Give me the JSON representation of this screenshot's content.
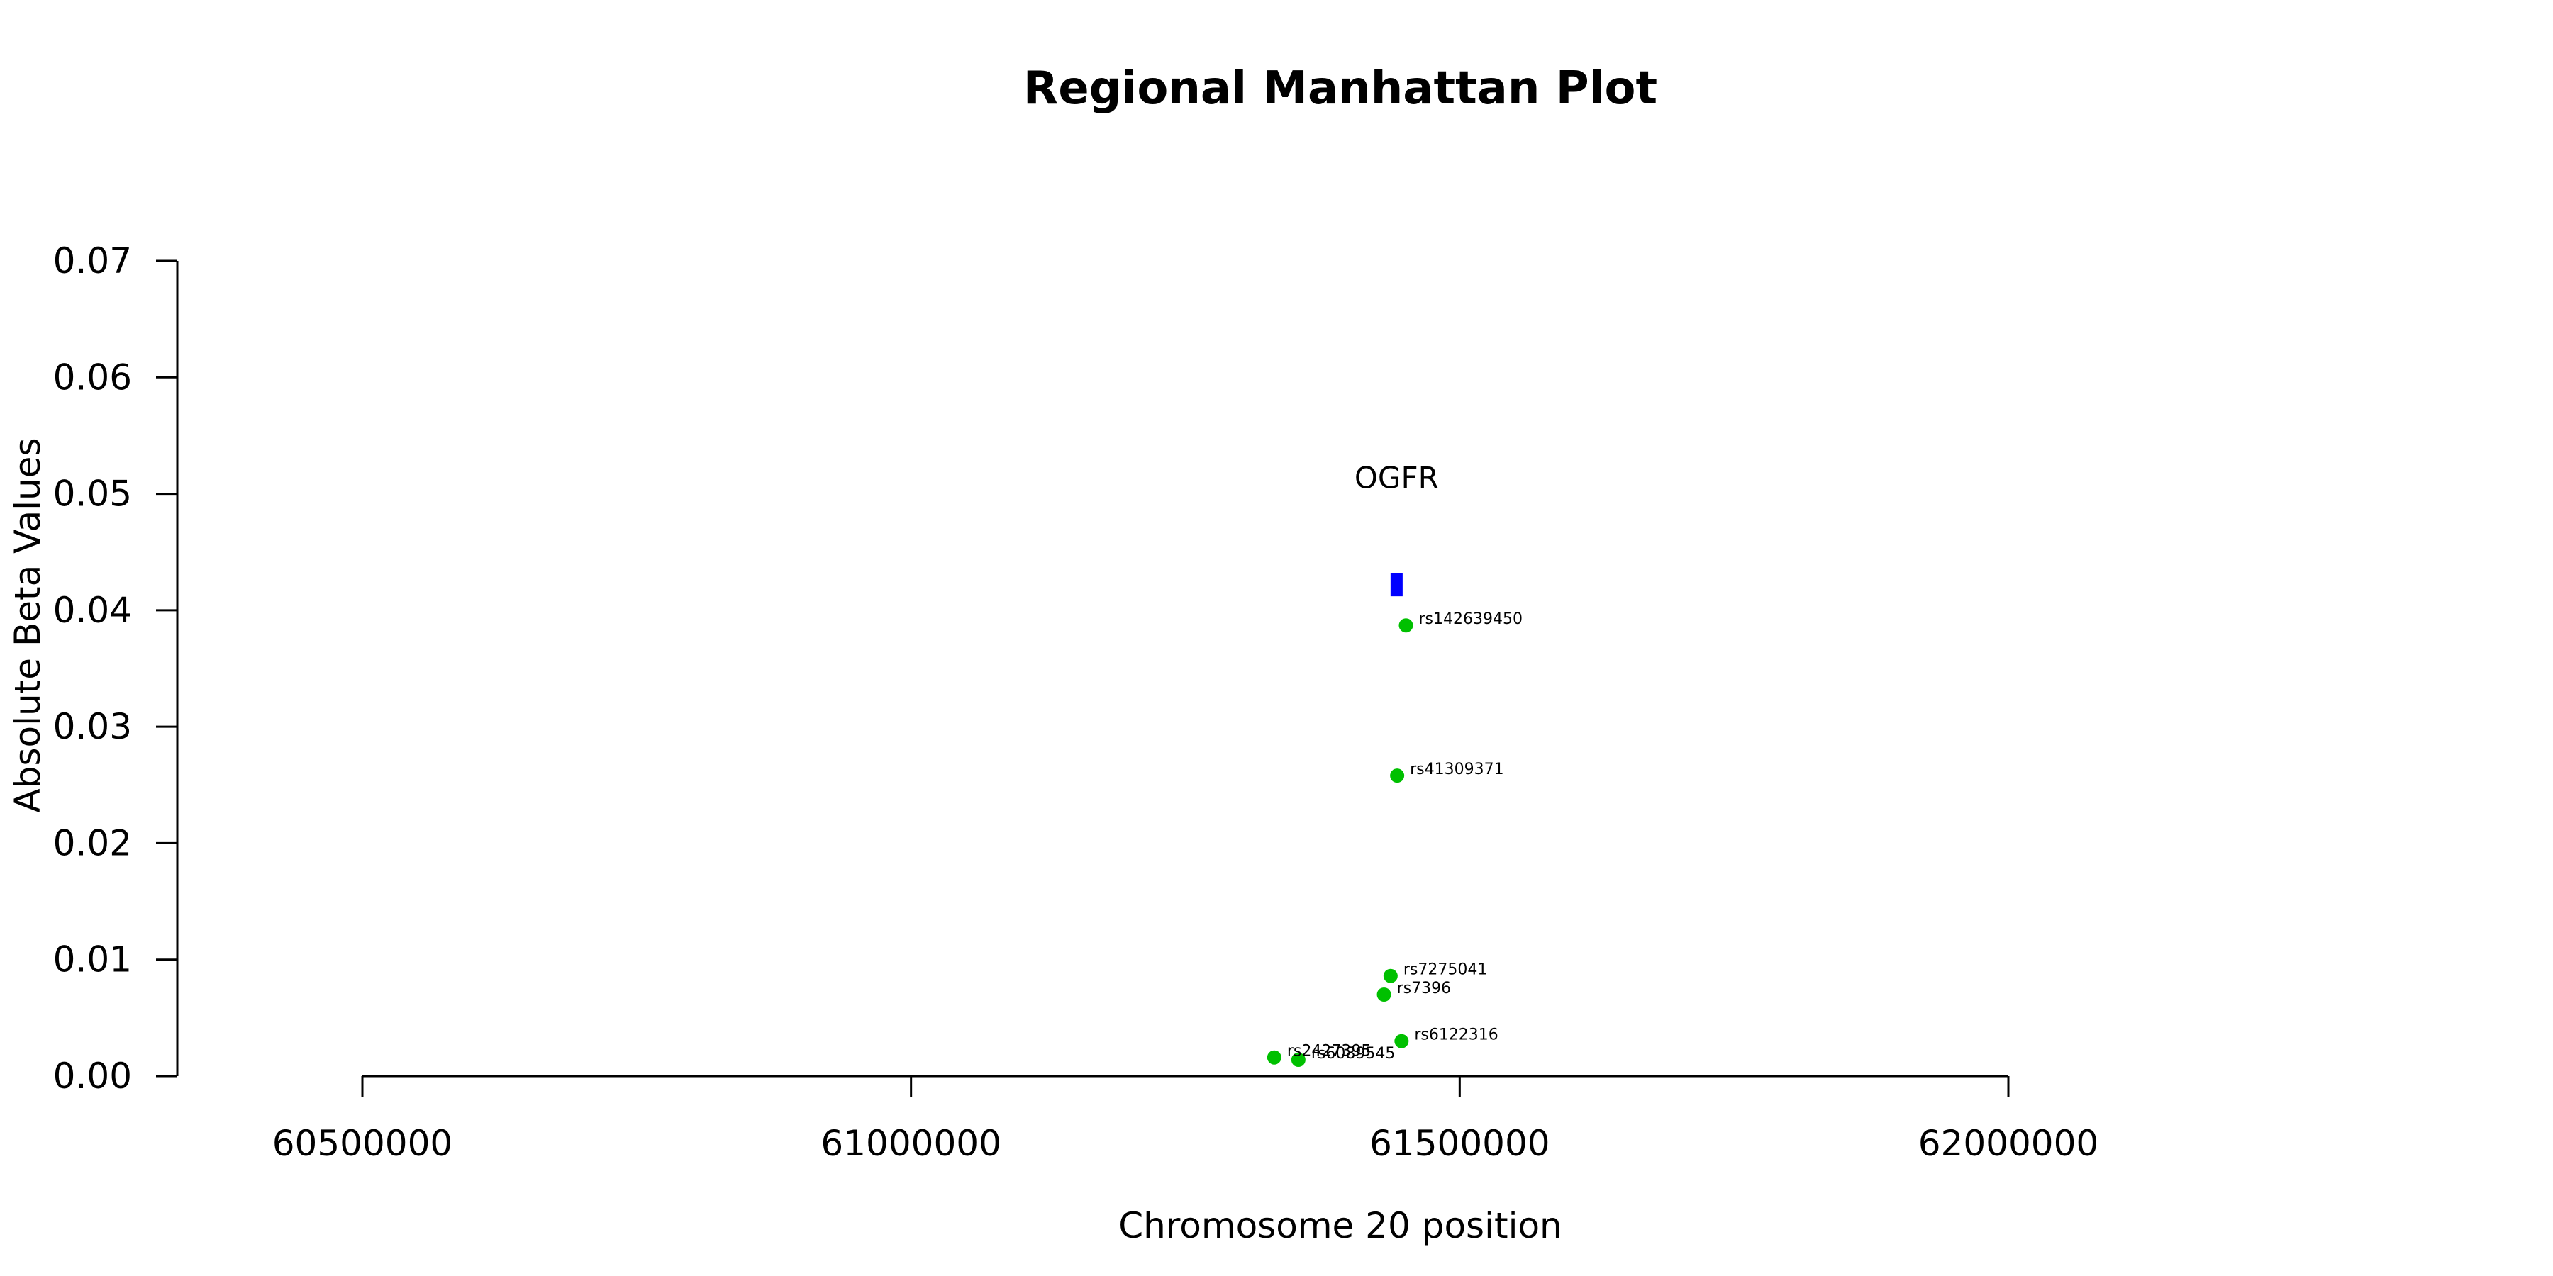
{
  "chart_data": {
    "type": "scatter",
    "title": "Regional Manhattan Plot",
    "xlabel": "Chromosome 20 position",
    "ylabel": "Absolute Beta Values",
    "xlim": [
      60500000,
      62000000
    ],
    "ylim": [
      0,
      0.07
    ],
    "x_ticks": [
      60500000,
      61000000,
      61500000,
      62000000
    ],
    "x_tick_labels": [
      "60500000",
      "61000000",
      "61500000",
      "62000000"
    ],
    "y_ticks": [
      0,
      0.01,
      0.02,
      0.03,
      0.04,
      0.05,
      0.06,
      0.07
    ],
    "y_tick_labels": [
      "0.00",
      "0.01",
      "0.02",
      "0.03",
      "0.04",
      "0.05",
      "0.06",
      "0.07"
    ],
    "point_color": "#00c000",
    "gene": {
      "name": "OGFR",
      "start": 61437000,
      "end": 61448000,
      "y_bottom": 0.0412,
      "y_top": 0.0432,
      "label_y": 0.0505,
      "color": "#0000ff"
    },
    "points": [
      {
        "snp": "rs142639450",
        "x": 61451000,
        "y": 0.0387
      },
      {
        "snp": "rs41309371",
        "x": 61443000,
        "y": 0.0258
      },
      {
        "snp": "rs7275041",
        "x": 61437000,
        "y": 0.0086
      },
      {
        "snp": "rs7396",
        "x": 61431000,
        "y": 0.007
      },
      {
        "snp": "rs6122316",
        "x": 61447000,
        "y": 0.003
      },
      {
        "snp": "rs2427395",
        "x": 61331000,
        "y": 0.0016
      },
      {
        "snp": "rs6089545",
        "x": 61353000,
        "y": 0.0014
      }
    ]
  }
}
